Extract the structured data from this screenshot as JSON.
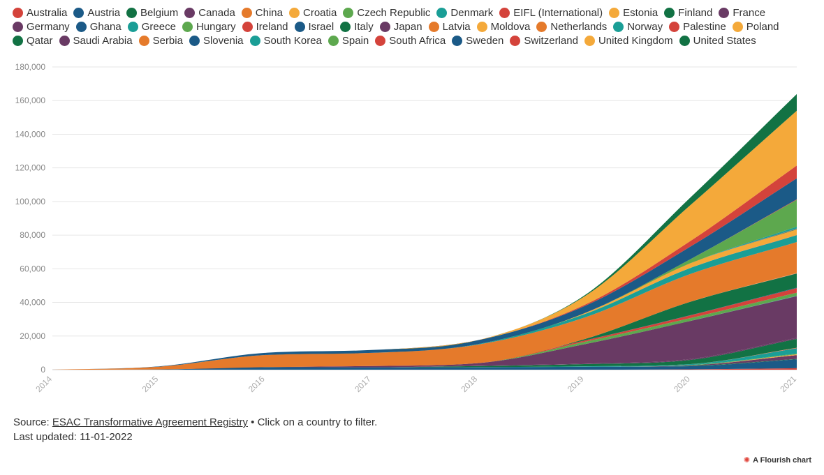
{
  "chart_data": {
    "type": "area",
    "stacked": true,
    "x": [
      2014,
      2015,
      2016,
      2017,
      2018,
      2019,
      2020,
      2021
    ],
    "x_ticks": [
      "2014",
      "2015",
      "2016",
      "2017",
      "2018",
      "2019",
      "2020",
      "2021"
    ],
    "y_ticks": [
      "0",
      "20,000",
      "40,000",
      "60,000",
      "80,000",
      "100,000",
      "120,000",
      "140,000",
      "160,000",
      "180,000"
    ],
    "ylim": [
      0,
      180000
    ],
    "grid": true,
    "legend_position": "top",
    "series": [
      {
        "name": "Australia",
        "color": "#d4433b",
        "values": [
          0,
          0,
          0,
          0,
          0,
          0,
          200,
          900
        ]
      },
      {
        "name": "Austria",
        "color": "#1b5a87",
        "values": [
          0,
          150,
          1500,
          1400,
          1400,
          1700,
          1900,
          5200
        ]
      },
      {
        "name": "Belgium",
        "color": "#127244",
        "values": [
          0,
          0,
          0,
          0,
          0,
          0,
          200,
          300
        ]
      },
      {
        "name": "Canada",
        "color": "#693a64",
        "values": [
          0,
          0,
          0,
          0,
          0,
          0,
          300,
          2200
        ]
      },
      {
        "name": "China",
        "color": "#e57a2b",
        "values": [
          0,
          0,
          0,
          0,
          0,
          0,
          0,
          200
        ]
      },
      {
        "name": "Croatia",
        "color": "#f4a93a",
        "values": [
          0,
          0,
          0,
          0,
          0,
          0,
          0,
          300
        ]
      },
      {
        "name": "Czech Republic",
        "color": "#5da84e",
        "values": [
          0,
          0,
          0,
          0,
          0,
          0,
          200,
          400
        ]
      },
      {
        "name": "Denmark",
        "color": "#1a9e96",
        "values": [
          0,
          0,
          0,
          0,
          100,
          300,
          500,
          3200
        ]
      },
      {
        "name": "EIFL (International)",
        "color": "#d4433b",
        "values": [
          0,
          0,
          0,
          0,
          0,
          0,
          0,
          200
        ]
      },
      {
        "name": "Estonia",
        "color": "#f4a93a",
        "values": [
          0,
          0,
          0,
          0,
          0,
          0,
          0,
          100
        ]
      },
      {
        "name": "Finland",
        "color": "#127244",
        "values": [
          0,
          0,
          0,
          0,
          700,
          1300,
          2500,
          5300
        ]
      },
      {
        "name": "France",
        "color": "#693a64",
        "values": [
          0,
          0,
          0,
          0,
          200,
          300,
          500,
          600
        ]
      },
      {
        "name": "Germany",
        "color": "#693a64",
        "values": [
          0,
          0,
          0,
          800,
          1500,
          11500,
          22700,
          24800
        ]
      },
      {
        "name": "Ghana",
        "color": "#1b5a87",
        "values": [
          0,
          0,
          0,
          0,
          0,
          0,
          0,
          100
        ]
      },
      {
        "name": "Greece",
        "color": "#1a9e96",
        "values": [
          0,
          0,
          0,
          0,
          0,
          0,
          0,
          100
        ]
      },
      {
        "name": "Hungary",
        "color": "#5da84e",
        "values": [
          0,
          0,
          0,
          0,
          0,
          1400,
          1700,
          1900
        ]
      },
      {
        "name": "Ireland",
        "color": "#d4433b",
        "values": [
          0,
          0,
          0,
          0,
          0,
          800,
          1600,
          2700
        ]
      },
      {
        "name": "Israel",
        "color": "#1b5a87",
        "values": [
          0,
          0,
          0,
          0,
          0,
          0,
          100,
          300
        ]
      },
      {
        "name": "Italy",
        "color": "#127244",
        "values": [
          0,
          0,
          0,
          0,
          0,
          800,
          8000,
          8400
        ]
      },
      {
        "name": "Japan",
        "color": "#693a64",
        "values": [
          0,
          0,
          0,
          0,
          0,
          0,
          0,
          100
        ]
      },
      {
        "name": "Latvia",
        "color": "#e57a2b",
        "values": [
          0,
          0,
          0,
          0,
          0,
          0,
          0,
          100
        ]
      },
      {
        "name": "Moldova",
        "color": "#f4a93a",
        "values": [
          0,
          0,
          0,
          0,
          0,
          0,
          0,
          100
        ]
      },
      {
        "name": "Netherlands",
        "color": "#e57a2b",
        "values": [
          0,
          1600,
          7200,
          7800,
          11000,
          12800,
          16500,
          18400
        ]
      },
      {
        "name": "Norway",
        "color": "#1a9e96",
        "values": [
          0,
          0,
          0,
          0,
          300,
          2000,
          3600,
          4100
        ]
      },
      {
        "name": "Palestine",
        "color": "#d4433b",
        "values": [
          0,
          0,
          0,
          0,
          0,
          0,
          0,
          100
        ]
      },
      {
        "name": "Poland",
        "color": "#f4a93a",
        "values": [
          0,
          0,
          0,
          0,
          0,
          600,
          2800,
          3300
        ]
      },
      {
        "name": "Qatar",
        "color": "#127244",
        "values": [
          0,
          0,
          0,
          0,
          0,
          0,
          0,
          200
        ]
      },
      {
        "name": "Saudi Arabia",
        "color": "#693a64",
        "values": [
          0,
          0,
          0,
          0,
          0,
          0,
          0,
          200
        ]
      },
      {
        "name": "Serbia",
        "color": "#e57a2b",
        "values": [
          0,
          0,
          0,
          0,
          0,
          0,
          0,
          100
        ]
      },
      {
        "name": "Slovenia",
        "color": "#1b5a87",
        "values": [
          0,
          0,
          0,
          0,
          0,
          0,
          0,
          100
        ]
      },
      {
        "name": "South Korea",
        "color": "#1a9e96",
        "values": [
          0,
          0,
          0,
          0,
          0,
          0,
          0,
          1000
        ]
      },
      {
        "name": "Spain",
        "color": "#5da84e",
        "values": [
          0,
          0,
          0,
          0,
          0,
          0,
          2400,
          16000
        ]
      },
      {
        "name": "South Africa",
        "color": "#d4433b",
        "values": [
          0,
          0,
          0,
          0,
          0,
          0,
          0,
          300
        ]
      },
      {
        "name": "Sweden",
        "color": "#1b5a87",
        "values": [
          0,
          200,
          1300,
          1700,
          2300,
          4200,
          7500,
          12500
        ]
      },
      {
        "name": "Switzerland",
        "color": "#d4433b",
        "values": [
          0,
          0,
          0,
          0,
          0,
          700,
          3300,
          7600
        ]
      },
      {
        "name": "United Kingdom",
        "color": "#f4a93a",
        "values": [
          0,
          0,
          0,
          0,
          0,
          5000,
          21400,
          32600
        ]
      },
      {
        "name": "United States",
        "color": "#127244",
        "values": [
          0,
          0,
          0,
          0,
          0,
          600,
          4500,
          9900
        ]
      }
    ]
  },
  "footer": {
    "source_prefix": "Source: ",
    "source_link": "ESAC Transformative Agreement Registry",
    "source_suffix": " • Click on a country to filter.",
    "updated": "Last updated: 11-01-2022"
  },
  "brand": {
    "icon": "flourish-star-icon",
    "label": "A Flourish chart"
  }
}
